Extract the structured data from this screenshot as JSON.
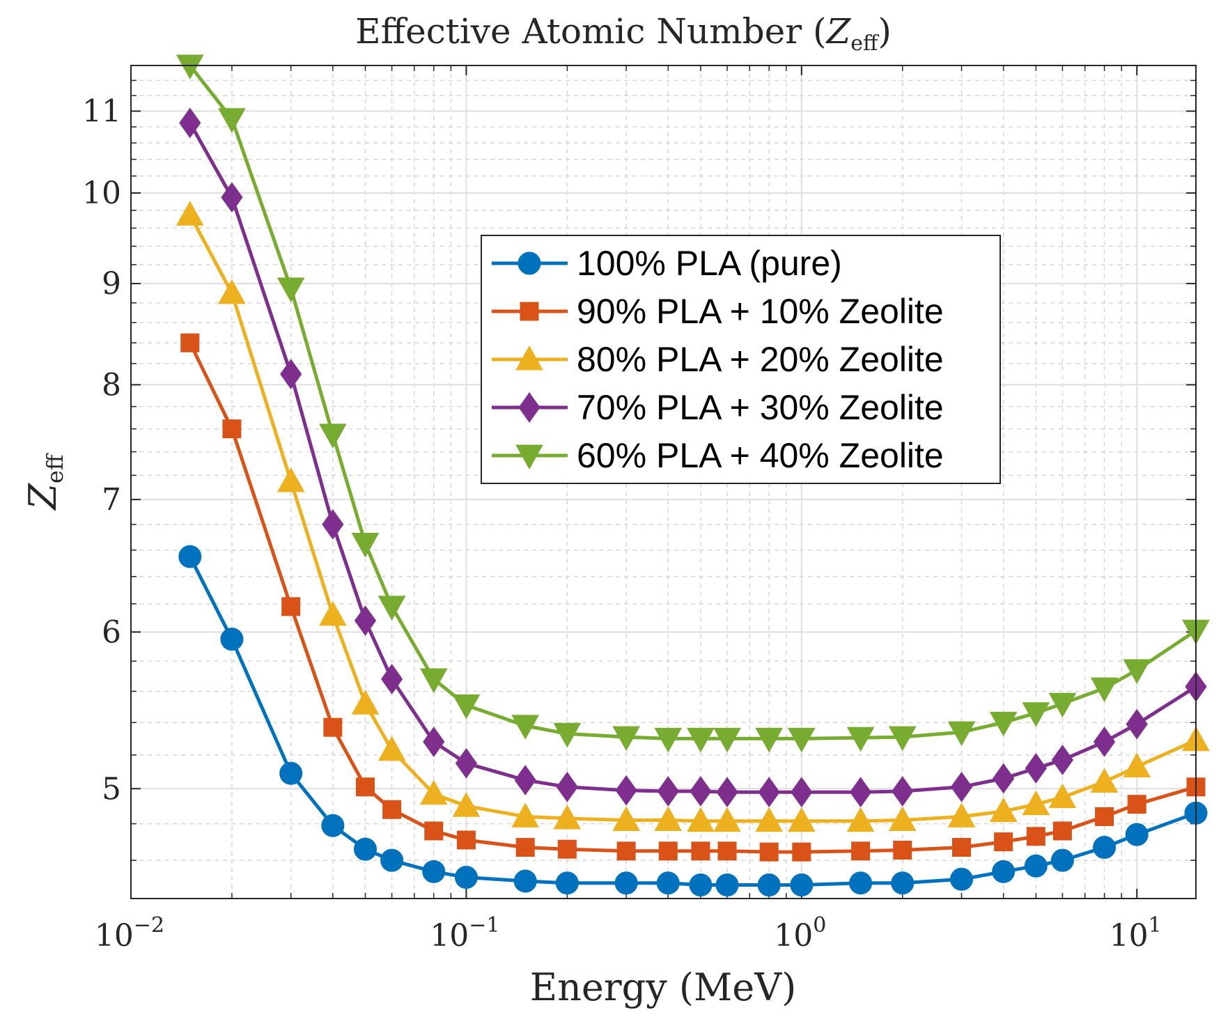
{
  "chart_data": {
    "type": "line",
    "title": "Effective Atomic Number (Z_eff)",
    "title_parts": {
      "prefix": "Effective Atomic Number (",
      "var": "Z",
      "sub": "eff",
      "suffix": ")"
    },
    "xlabel": "Energy (MeV)",
    "ylabel": {
      "var": "Z",
      "sub": "eff"
    },
    "xscale": "log",
    "yscale": "log",
    "xlim": [
      0.01,
      15
    ],
    "ylim": [
      4.4,
      11.6
    ],
    "grid": true,
    "legend_position": "center-right",
    "x_tick_labels": [
      {
        "value": 0.01,
        "base": "10",
        "exp": "−2"
      },
      {
        "value": 0.1,
        "base": "10",
        "exp": "−1"
      },
      {
        "value": 1,
        "base": "10",
        "exp": "0"
      },
      {
        "value": 10,
        "base": "10",
        "exp": "1"
      }
    ],
    "y_ticks": [
      5,
      6,
      7,
      8,
      9,
      10,
      11
    ],
    "y_tick_labels": [
      "5",
      "6",
      "7",
      "8",
      "9",
      "10",
      "11"
    ],
    "x": [
      0.015,
      0.02,
      0.03,
      0.04,
      0.05,
      0.06,
      0.08,
      0.1,
      0.15,
      0.2,
      0.3,
      0.4,
      0.5,
      0.6,
      0.8,
      1,
      1.5,
      2,
      3,
      4,
      5,
      6,
      8,
      10,
      15
    ],
    "series": [
      {
        "name": "100% PLA (pure)",
        "color": "#0072BD",
        "marker": "circle",
        "values": [
          6.55,
          5.95,
          5.09,
          4.79,
          4.66,
          4.6,
          4.54,
          4.51,
          4.49,
          4.48,
          4.48,
          4.48,
          4.47,
          4.47,
          4.47,
          4.47,
          4.48,
          4.48,
          4.5,
          4.54,
          4.57,
          4.6,
          4.67,
          4.74,
          4.86
        ]
      },
      {
        "name": "90% PLA + 10% Zeolite",
        "color": "#D95319",
        "marker": "square",
        "values": [
          8.4,
          7.6,
          6.18,
          5.37,
          5.01,
          4.88,
          4.76,
          4.71,
          4.67,
          4.66,
          4.65,
          4.65,
          4.65,
          4.65,
          4.645,
          4.645,
          4.65,
          4.655,
          4.67,
          4.7,
          4.73,
          4.76,
          4.84,
          4.91,
          5.01
        ]
      },
      {
        "name": "80% PLA + 20% Zeolite",
        "color": "#EDB120",
        "marker": "triangle-up",
        "values": [
          9.75,
          8.9,
          7.15,
          6.12,
          5.52,
          5.23,
          4.97,
          4.9,
          4.84,
          4.83,
          4.82,
          4.82,
          4.815,
          4.815,
          4.815,
          4.815,
          4.815,
          4.82,
          4.84,
          4.87,
          4.91,
          4.95,
          5.04,
          5.13,
          5.29
        ]
      },
      {
        "name": "70% PLA + 30% Zeolite",
        "color": "#7E2F8E",
        "marker": "diamond",
        "values": [
          10.85,
          9.95,
          8.1,
          6.8,
          6.08,
          5.68,
          5.28,
          5.15,
          5.05,
          5.01,
          4.99,
          4.985,
          4.985,
          4.98,
          4.98,
          4.98,
          4.98,
          4.985,
          5.01,
          5.06,
          5.12,
          5.17,
          5.28,
          5.39,
          5.63
        ]
      },
      {
        "name": "60% PLA + 40% Zeolite",
        "color": "#77AC30",
        "marker": "triangle-down",
        "values": [
          11.6,
          10.9,
          8.95,
          7.55,
          6.65,
          6.18,
          5.68,
          5.51,
          5.38,
          5.33,
          5.31,
          5.3,
          5.3,
          5.3,
          5.3,
          5.3,
          5.305,
          5.31,
          5.34,
          5.4,
          5.46,
          5.52,
          5.62,
          5.74,
          6.01
        ]
      }
    ]
  }
}
